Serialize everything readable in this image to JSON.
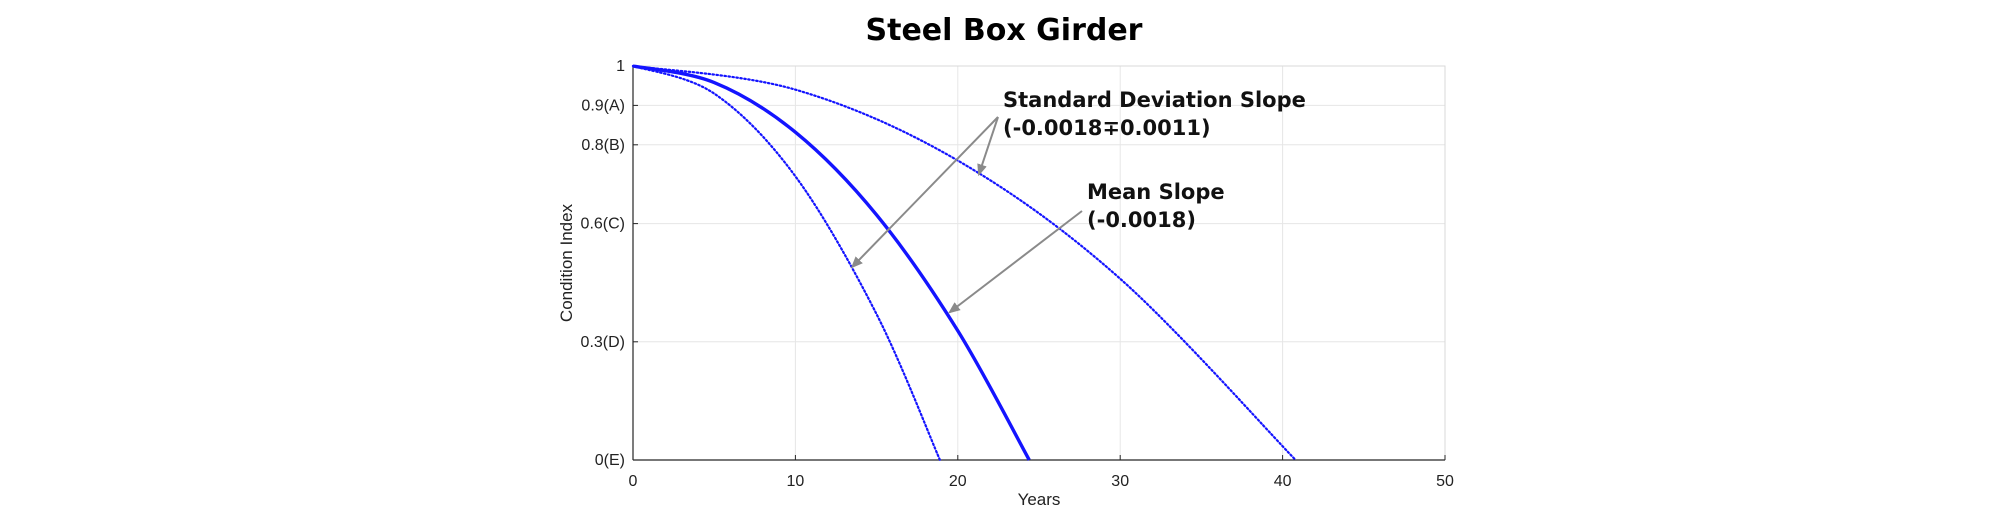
{
  "chart_data": {
    "type": "line",
    "title": "Steel Box Girder",
    "xlabel": "Years",
    "ylabel": "Condition Index",
    "xlim": [
      0,
      50
    ],
    "ylim": [
      0,
      1
    ],
    "xticks": [
      0,
      10,
      20,
      30,
      40,
      50
    ],
    "yticks": [
      {
        "value": 0,
        "label": "0(E)"
      },
      {
        "value": 0.3,
        "label": "0.3(D)"
      },
      {
        "value": 0.6,
        "label": "0.6(C)"
      },
      {
        "value": 0.8,
        "label": "0.8(B)"
      },
      {
        "value": 0.9,
        "label": "0.9(A)"
      },
      {
        "value": 1,
        "label": "1"
      }
    ],
    "grid": true,
    "series": [
      {
        "x": [
          0,
          5,
          10,
          15,
          20,
          24.4
        ],
        "y": [
          1.0,
          0.958,
          0.832,
          0.622,
          0.328,
          0.0
        ],
        "style": "solid",
        "color": "#1414ff"
      },
      {
        "x": [
          0,
          5,
          10,
          15,
          18.9
        ],
        "y": [
          1.0,
          0.93,
          0.72,
          0.37,
          0.0
        ],
        "style": "dotted",
        "color": "#1414ff"
      },
      {
        "x": [
          0,
          10,
          20,
          30,
          40.8
        ],
        "y": [
          1.0,
          0.94,
          0.76,
          0.46,
          0.0
        ],
        "style": "dotted",
        "color": "#1414ff"
      }
    ],
    "annotations": [
      {
        "lines": [
          "Standard Deviation Slope",
          "(-0.0018∓0.0011)"
        ],
        "arrows_to": [
          {
            "x": 13.5,
            "y": 0.49
          },
          {
            "x": 21.3,
            "y": 0.725
          }
        ]
      },
      {
        "lines": [
          "Mean Slope",
          "(-0.0018)"
        ],
        "arrows_to": [
          {
            "x": 19.5,
            "y": 0.375
          }
        ]
      }
    ]
  }
}
